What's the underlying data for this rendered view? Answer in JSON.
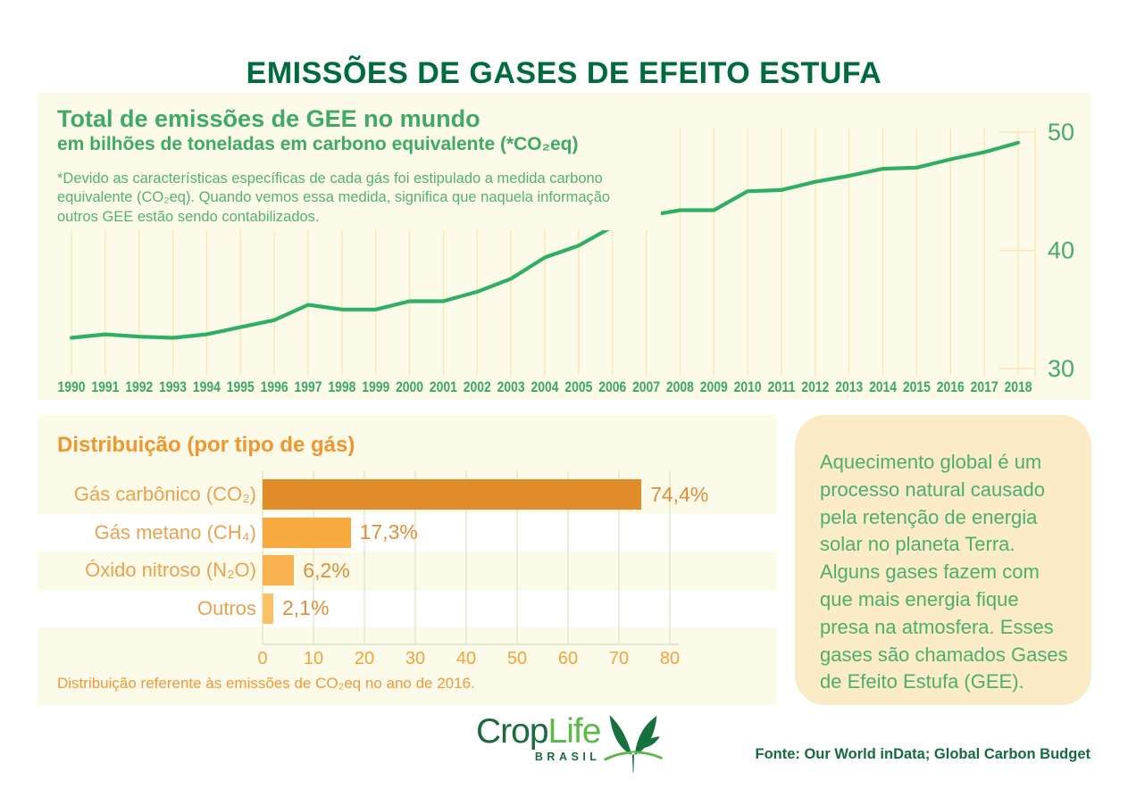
{
  "page": {
    "title": "EMISSÕES DE GASES DE EFEITO ESTUFA"
  },
  "colors": {
    "title_green": "#006B3D",
    "chart_green": "#3FAA66",
    "footnote_green": "#54B174",
    "line_green": "#2FAF66",
    "panel_cream": "#FCFAE8",
    "grid_yellow": "#F9E7B4",
    "bar_grid_green": "#DCE4C6",
    "orange_title": "#F0962F",
    "orange_label": "#E7A351",
    "orange_value": "#E18F3C",
    "orange_tick": "#F2A33C",
    "info_box_bg": "#FBECC7",
    "info_text_green": "#4CAF6E",
    "logo_dark_green": "#1B6B3F",
    "logo_light_green": "#5CB947"
  },
  "info_box": {
    "text": "Aquecimento global é um processo natural causado pela retenção de energia solar no planeta Terra. Alguns gases fazem com que mais energia fique presa na atmosfera. Esses gases são chamados Gases de Efeito Estufa (GEE)."
  },
  "footer": {
    "logo_part1": "Crop",
    "logo_part2": "Life",
    "logo_subtext": "BRASIL",
    "source": "Fonte: Our World inData; Global Carbon Budget"
  },
  "chart_data": [
    {
      "type": "line",
      "title": "Total de emissões de GEE no mundo",
      "subtitle": "em bilhões de toneladas em carbono equivalente (*CO₂eq)",
      "footnote": "*Devido as características específicas de cada gás foi estipulado a medida carbono equivalente (CO₂eq). Quando vemos essa medida, significa que naquela informação outros GEE estão sendo contabilizados.",
      "x": [
        1990,
        1991,
        1992,
        1993,
        1994,
        1995,
        1996,
        1997,
        1998,
        1999,
        2000,
        2001,
        2002,
        2003,
        2004,
        2005,
        2006,
        2007,
        2008,
        2009,
        2010,
        2011,
        2012,
        2013,
        2014,
        2015,
        2016,
        2017,
        2018
      ],
      "values": [
        32.6,
        32.9,
        32.7,
        32.6,
        32.9,
        33.5,
        34.1,
        35.4,
        35.0,
        35.0,
        35.7,
        35.7,
        36.5,
        37.6,
        39.4,
        40.4,
        42.0,
        42.9,
        43.4,
        43.4,
        45.0,
        45.1,
        45.8,
        46.3,
        46.9,
        47.0,
        47.7,
        48.3,
        49.1
      ],
      "ylim": [
        30,
        50
      ],
      "yticks": [
        50,
        40,
        30
      ],
      "grid": "vertical-per-year, y axis on right",
      "legend": "none",
      "line_color": "#2FAF66"
    },
    {
      "type": "bar",
      "orientation": "horizontal",
      "title": "Distribuição (por tipo de gás)",
      "categories": [
        "Gás carbônico (CO₂)",
        "Gás metano (CH₄)",
        "Óxido nitroso (N₂O)",
        "Outros"
      ],
      "values": [
        74.4,
        17.3,
        6.2,
        2.1
      ],
      "value_labels": [
        "74,4%",
        "17,3%",
        "6,2%",
        "2,1%"
      ],
      "bar_colors": [
        "#E08C2B",
        "#F8A93E",
        "#F9B250",
        "#FBC165"
      ],
      "xticks": [
        0,
        10,
        20,
        30,
        40,
        50,
        60,
        70,
        80
      ],
      "xlim": [
        0,
        82
      ],
      "unit": "%",
      "note": "Distribuição referente às emissões de CO₂eq no ano de 2016."
    }
  ]
}
